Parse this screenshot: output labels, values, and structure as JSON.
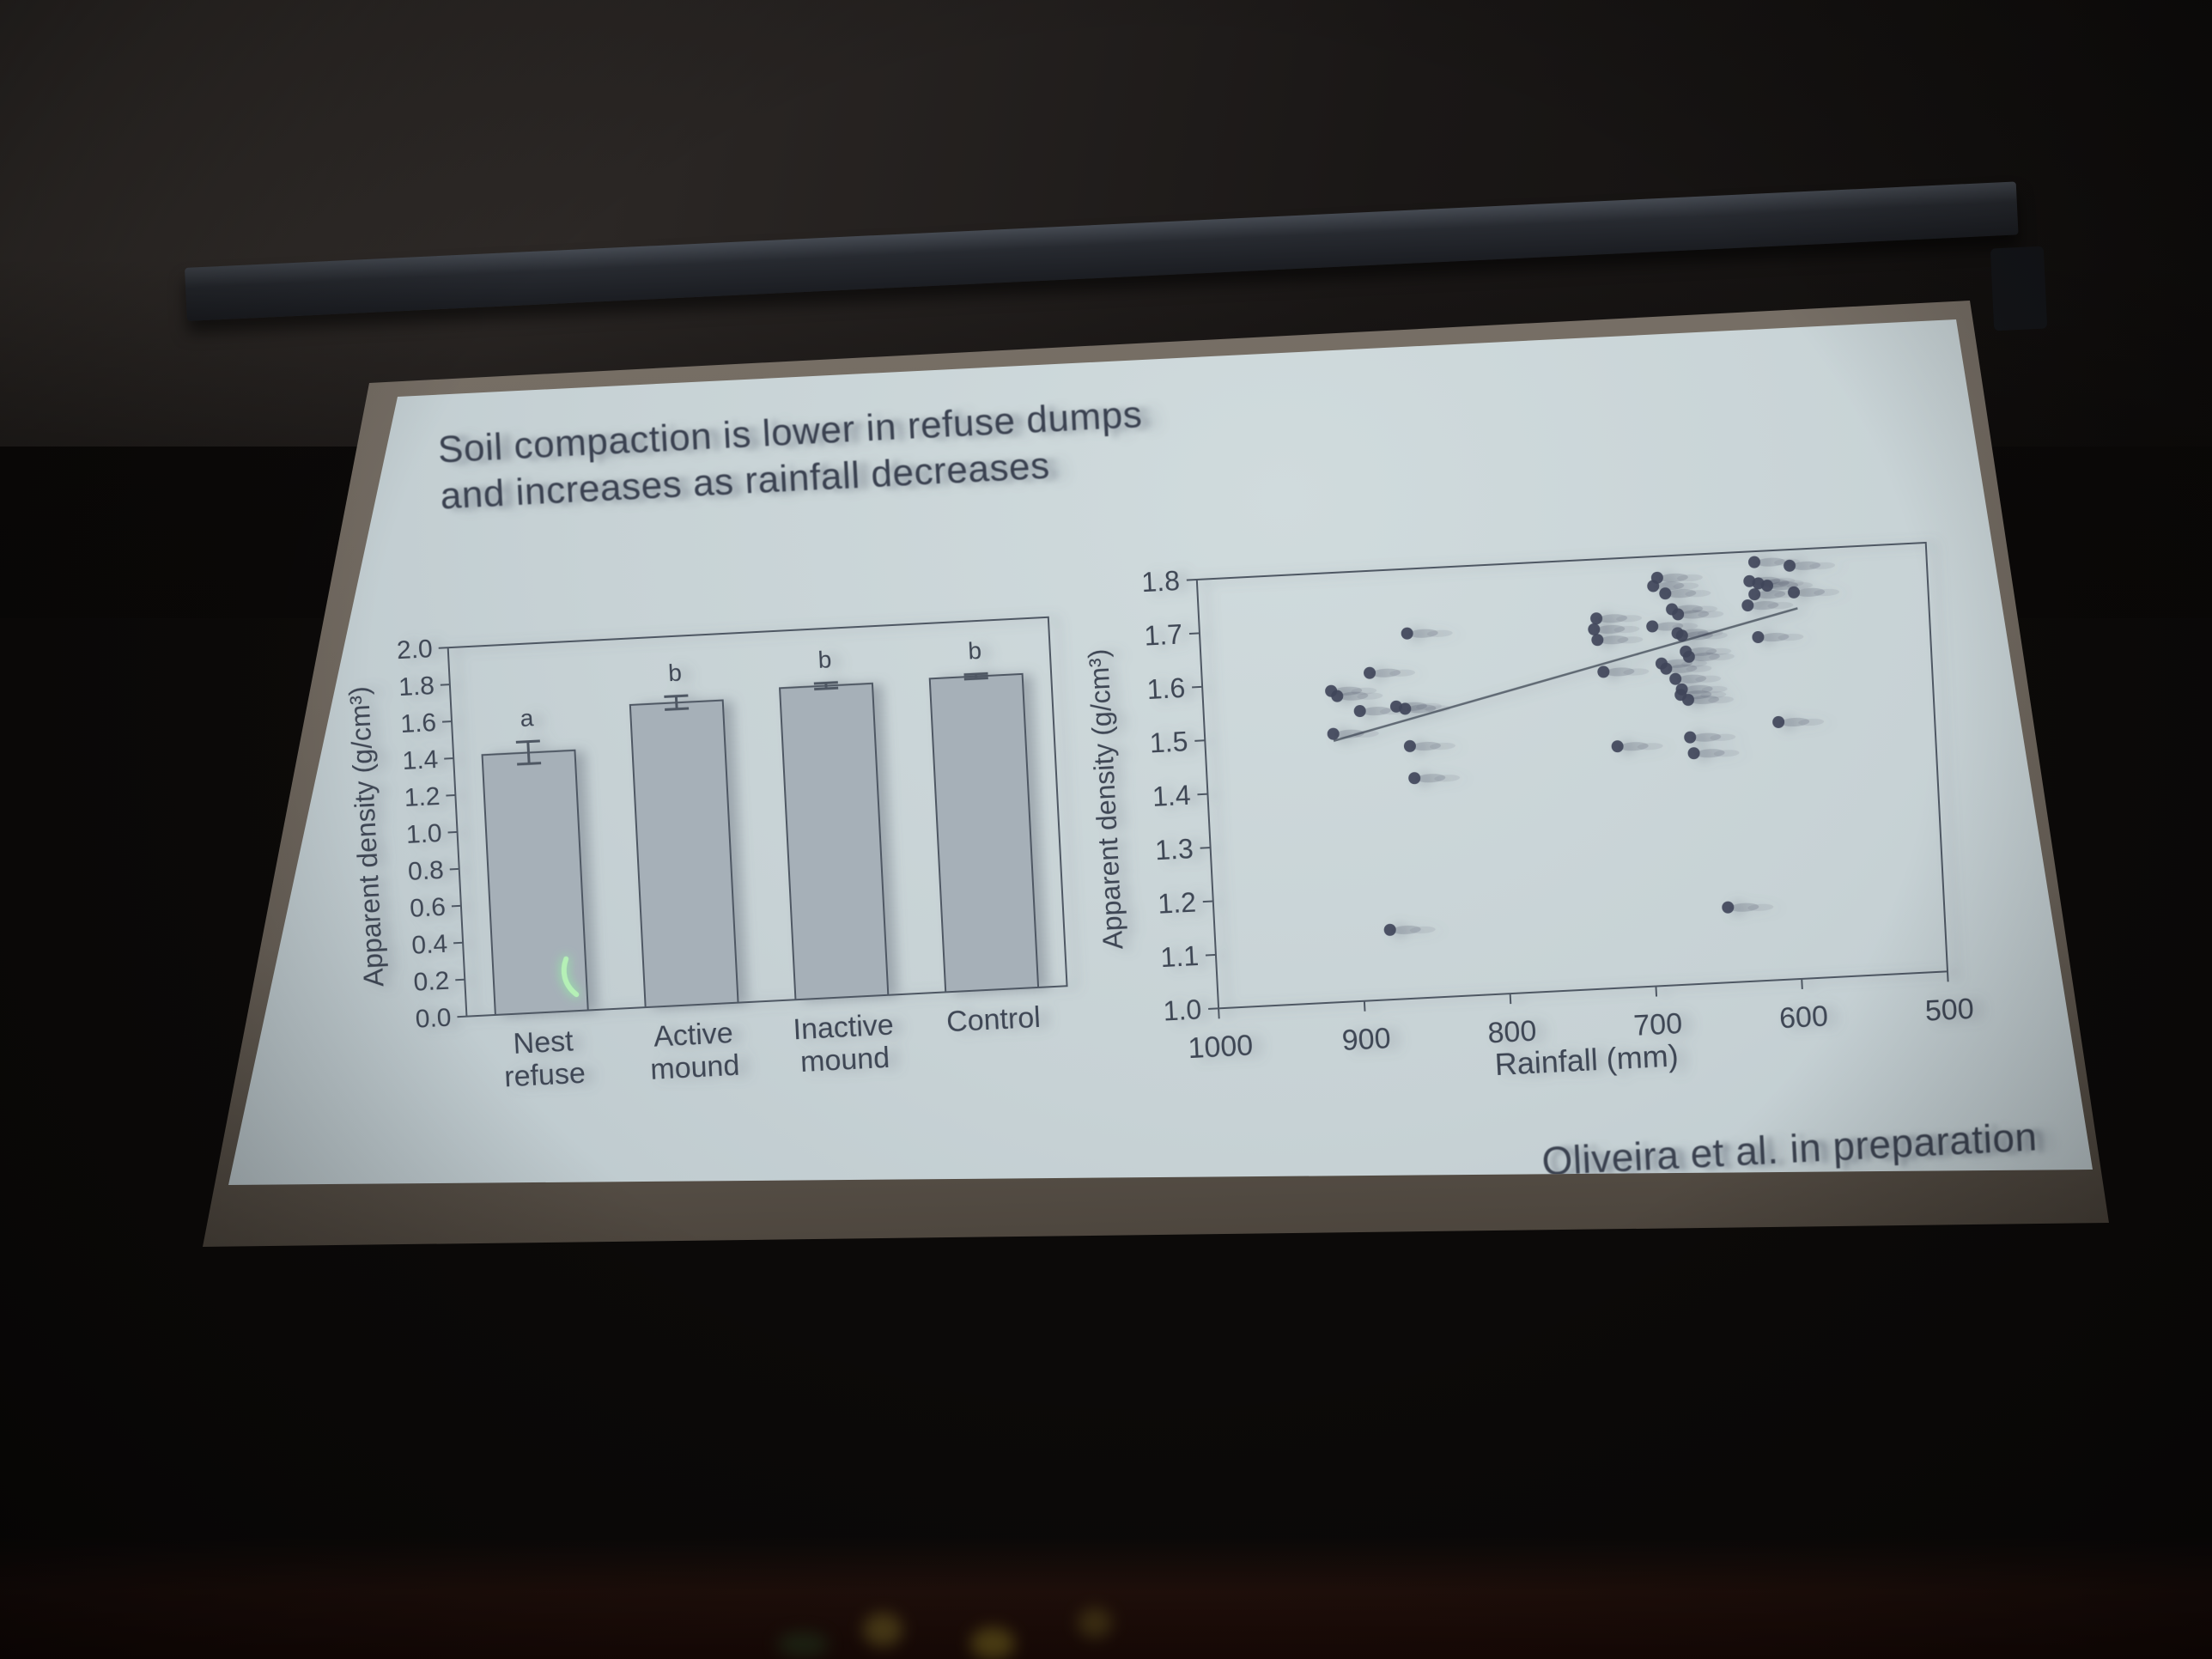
{
  "slide": {
    "title_line1": "Soil compaction is lower in refuse dumps",
    "title_line2": "and increases as rainfall decreases",
    "attribution": "Oliveira et al. in preparation"
  },
  "colors": {
    "slide_bg": "#c7d2d5",
    "ink": "#3e4654",
    "axis": "#4e5763",
    "bar_fill": "#a6b0b8",
    "point": "#40455a",
    "laser_green": "#b5f0b6"
  },
  "chart_data": [
    {
      "type": "bar",
      "title": "",
      "categories": [
        "Nest refuse",
        "Active mound",
        "Inactive mound",
        "Control"
      ],
      "category_lines": [
        [
          "Nest",
          "refuse"
        ],
        [
          "Active",
          "mound"
        ],
        [
          "Inactive",
          "mound"
        ],
        [
          "Control"
        ]
      ],
      "values": [
        1.41,
        1.64,
        1.69,
        1.7
      ],
      "errors": [
        0.06,
        0.035,
        0.015,
        0.012
      ],
      "sig_letters": [
        "a",
        "b",
        "b",
        "b"
      ],
      "xlabel": "",
      "ylabel": "Apparent density (g/cm³)",
      "ylim": [
        0.0,
        2.0
      ],
      "ytick_step": 0.2,
      "grid": false,
      "legend": null
    },
    {
      "type": "scatter",
      "title": "",
      "xlabel": "Rainfall (mm)",
      "ylabel": "Apparent density (g/cm³)",
      "x_axis_reversed": true,
      "xlim": [
        1000,
        500
      ],
      "xticks": [
        1000,
        900,
        800,
        700,
        600,
        500
      ],
      "ylim": [
        1.0,
        1.8
      ],
      "ytick_step": 0.1,
      "grid": false,
      "points": [
        [
          858,
          1.68
        ],
        [
          885,
          1.61
        ],
        [
          912,
          1.58
        ],
        [
          908,
          1.57
        ],
        [
          893,
          1.54
        ],
        [
          868,
          1.545
        ],
        [
          862,
          1.54
        ],
        [
          912,
          1.5
        ],
        [
          860,
          1.47
        ],
        [
          858,
          1.41
        ],
        [
          880,
          1.13
        ],
        [
          728,
          1.69
        ],
        [
          730,
          1.67
        ],
        [
          728,
          1.65
        ],
        [
          725,
          1.59
        ],
        [
          718,
          1.45
        ],
        [
          685,
          1.76
        ],
        [
          688,
          1.745
        ],
        [
          680,
          1.73
        ],
        [
          690,
          1.67
        ],
        [
          676,
          1.7
        ],
        [
          672,
          1.69
        ],
        [
          673,
          1.655
        ],
        [
          670,
          1.65
        ],
        [
          668,
          1.62
        ],
        [
          666,
          1.61
        ],
        [
          685,
          1.6
        ],
        [
          682,
          1.59
        ],
        [
          676,
          1.57
        ],
        [
          672,
          1.55
        ],
        [
          673,
          1.54
        ],
        [
          668,
          1.53
        ],
        [
          668,
          1.46
        ],
        [
          666,
          1.43
        ],
        [
          648,
          1.14
        ],
        [
          618,
          1.78
        ],
        [
          594,
          1.77
        ],
        [
          622,
          1.745
        ],
        [
          616,
          1.74
        ],
        [
          610,
          1.735
        ],
        [
          619,
          1.72
        ],
        [
          592,
          1.72
        ],
        [
          624,
          1.7
        ],
        [
          618,
          1.64
        ],
        [
          607,
          1.48
        ]
      ],
      "trend_line": [
        [
          912,
          1.487
        ],
        [
          590,
          1.69
        ]
      ]
    }
  ]
}
